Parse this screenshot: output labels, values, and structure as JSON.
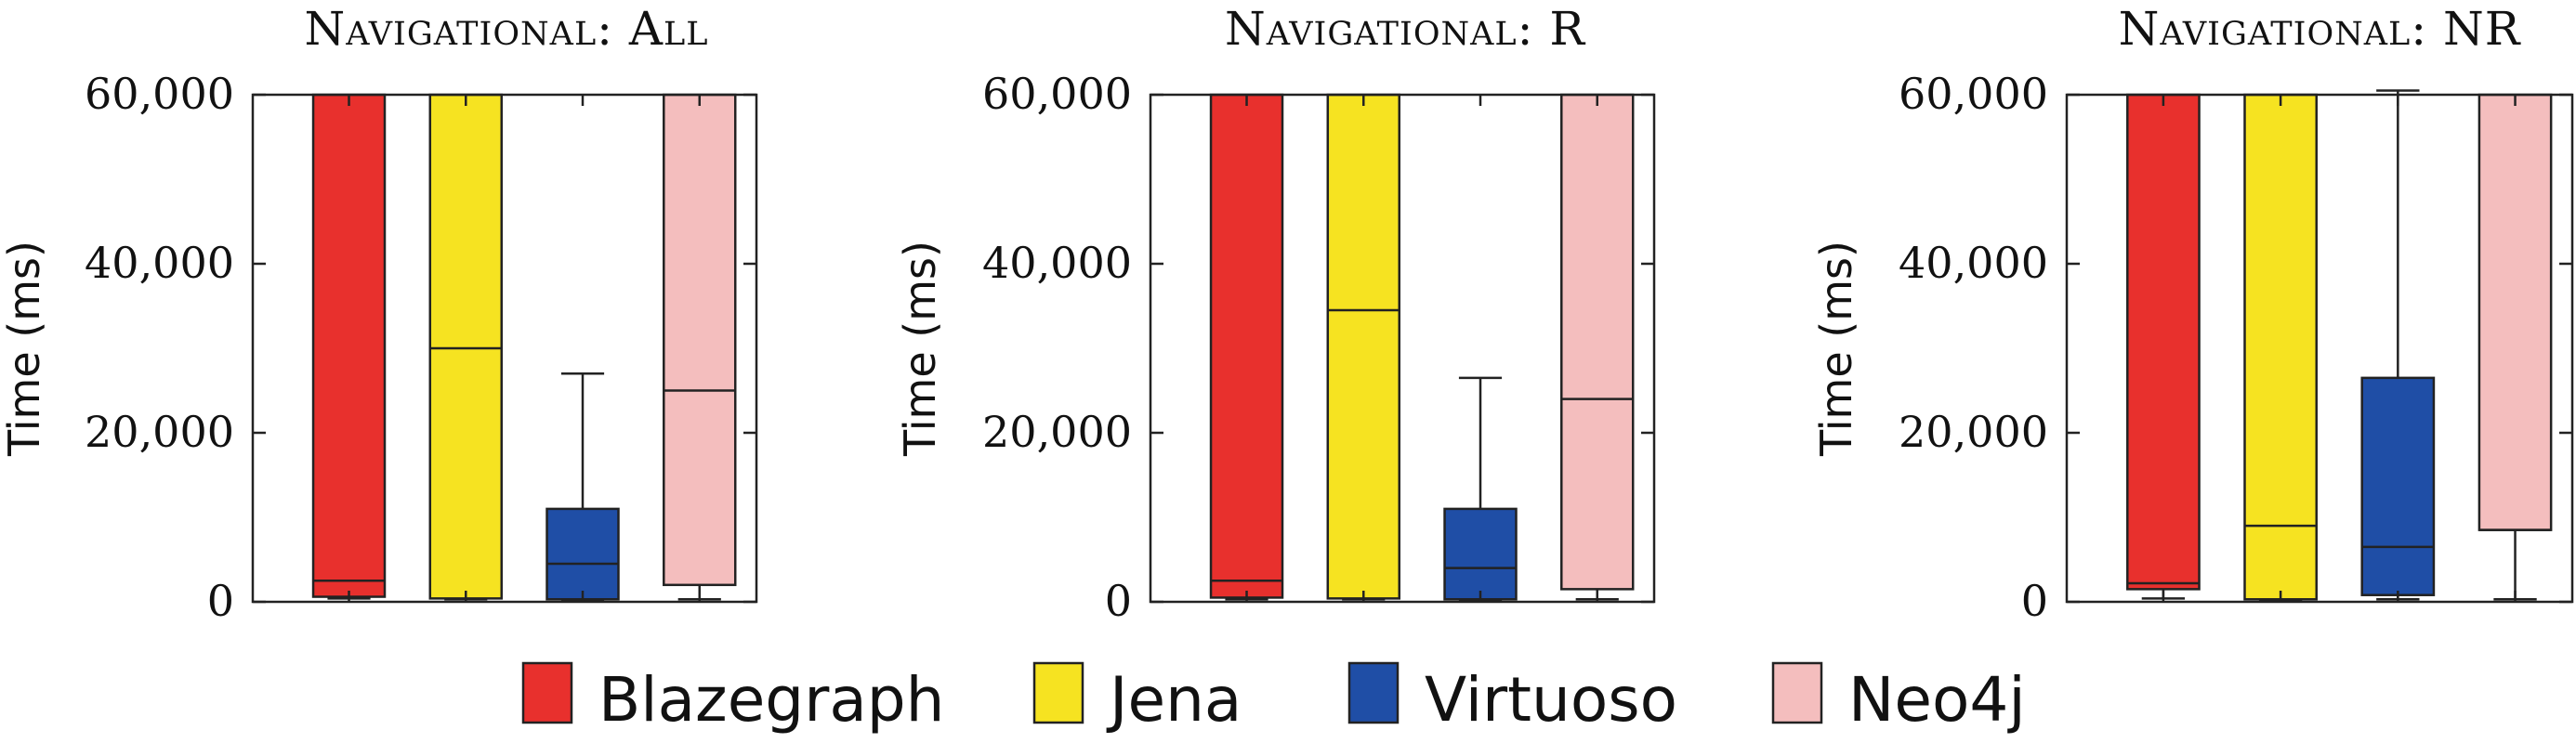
{
  "colors": {
    "Blazegraph": "#e8302d",
    "Jena": "#f6e321",
    "Virtuoso": "#1f4ea6",
    "Neo4j": "#f4bebe"
  },
  "legend": [
    {
      "name": "Blazegraph",
      "label": "Blazegraph"
    },
    {
      "name": "Jena",
      "label": "Jena"
    },
    {
      "name": "Virtuoso",
      "label": "Virtuoso"
    },
    {
      "name": "Neo4j",
      "label": "Neo4j"
    }
  ],
  "chart_data": [
    {
      "type": "box",
      "title": "Navigational: All",
      "ylabel": "Time (ms)",
      "ylim": [
        0,
        60000
      ],
      "yticks": [
        0,
        20000,
        40000,
        60000
      ],
      "ytick_labels": [
        "0",
        "20,000",
        "40,000",
        "60,000"
      ],
      "grid": false,
      "series": [
        {
          "name": "Blazegraph",
          "whisker_low": 400,
          "q1": 600,
          "median": 2500,
          "q3": 60000,
          "whisker_high": 60000
        },
        {
          "name": "Jena",
          "whisker_low": 300,
          "q1": 400,
          "median": 30000,
          "q3": 60000,
          "whisker_high": 60000
        },
        {
          "name": "Virtuoso",
          "whisker_low": 200,
          "q1": 300,
          "median": 4500,
          "q3": 11000,
          "whisker_high": 27000
        },
        {
          "name": "Neo4j",
          "whisker_low": 300,
          "q1": 2000,
          "median": 25000,
          "q3": 60000,
          "whisker_high": 60000
        }
      ]
    },
    {
      "type": "box",
      "title": "Navigational: R",
      "ylabel": "Time (ms)",
      "ylim": [
        0,
        60000
      ],
      "yticks": [
        0,
        20000,
        40000,
        60000
      ],
      "ytick_labels": [
        "0",
        "20,000",
        "40,000",
        "60,000"
      ],
      "grid": false,
      "series": [
        {
          "name": "Blazegraph",
          "whisker_low": 300,
          "q1": 500,
          "median": 2500,
          "q3": 60000,
          "whisker_high": 60000
        },
        {
          "name": "Jena",
          "whisker_low": 300,
          "q1": 400,
          "median": 34500,
          "q3": 60000,
          "whisker_high": 60000
        },
        {
          "name": "Virtuoso",
          "whisker_low": 200,
          "q1": 300,
          "median": 4000,
          "q3": 11000,
          "whisker_high": 26500
        },
        {
          "name": "Neo4j",
          "whisker_low": 300,
          "q1": 1500,
          "median": 24000,
          "q3": 60000,
          "whisker_high": 60000
        }
      ]
    },
    {
      "type": "box",
      "title": "Navigational: NR",
      "ylabel": "Time (ms)",
      "ylim": [
        0,
        60000
      ],
      "yticks": [
        0,
        20000,
        40000,
        60000
      ],
      "ytick_labels": [
        "0",
        "20,000",
        "40,000",
        "60,000"
      ],
      "grid": false,
      "series": [
        {
          "name": "Blazegraph",
          "whisker_low": 400,
          "q1": 1500,
          "median": 2200,
          "q3": 60000,
          "whisker_high": 60000
        },
        {
          "name": "Jena",
          "whisker_low": 200,
          "q1": 300,
          "median": 9000,
          "q3": 60000,
          "whisker_high": 60000
        },
        {
          "name": "Virtuoso",
          "whisker_low": 300,
          "q1": 800,
          "median": 6500,
          "q3": 26500,
          "whisker_high": 60500
        },
        {
          "name": "Neo4j",
          "whisker_low": 300,
          "q1": 8500,
          "median": 8500,
          "q3": 60000,
          "whisker_high": 60000
        }
      ]
    }
  ]
}
